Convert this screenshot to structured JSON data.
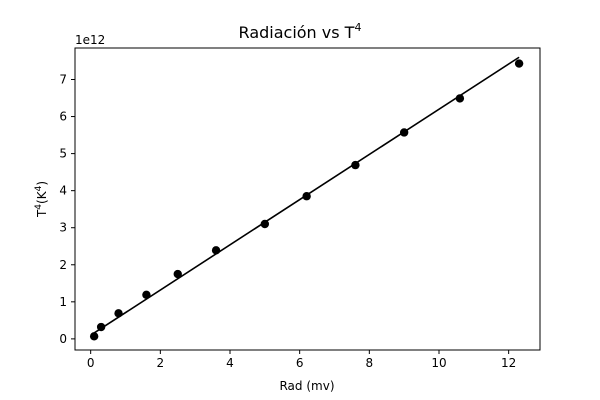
{
  "chart_data": {
    "type": "scatter",
    "title": "Radiación vs T",
    "title_sup": "4",
    "xlabel": "Rad (mv)",
    "ylabel_prefix": "T",
    "ylabel_sup1": "4",
    "ylabel_mid": "(K",
    "ylabel_sup2": "4",
    "ylabel_suffix": ")",
    "offset_label": "1e12",
    "xlim": [
      -0.45,
      12.9
    ],
    "ylim": [
      -0.3,
      7.85
    ],
    "xticks": [
      0,
      2,
      4,
      6,
      8,
      10,
      12
    ],
    "xtick_labels": [
      "0",
      "2",
      "4",
      "6",
      "8",
      "10",
      "12"
    ],
    "yticks": [
      0,
      1,
      2,
      3,
      4,
      5,
      6,
      7
    ],
    "ytick_labels": [
      "0",
      "1",
      "2",
      "3",
      "4",
      "5",
      "6",
      "7"
    ],
    "y_scale": "×1e12",
    "series": [
      {
        "kind": "points",
        "color": "#000000",
        "x": [
          0.1,
          0.3,
          0.8,
          1.6,
          2.5,
          3.6,
          5.0,
          6.2,
          7.6,
          9.0,
          10.6,
          12.3
        ],
        "y": [
          0.07,
          0.32,
          0.69,
          1.19,
          1.75,
          2.39,
          3.1,
          3.85,
          4.69,
          5.57,
          6.49,
          7.43
        ]
      },
      {
        "kind": "line",
        "color": "#000000",
        "x": [
          0.1,
          12.3
        ],
        "y": [
          0.16,
          7.6
        ]
      }
    ],
    "grid": false,
    "legend": "none"
  }
}
